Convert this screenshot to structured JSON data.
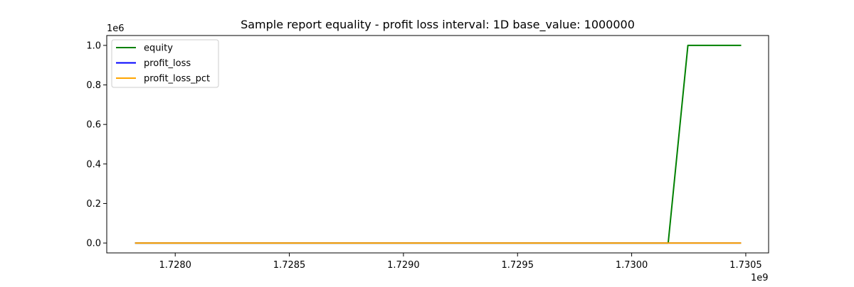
{
  "chart_data": {
    "type": "line",
    "title": "Sample report equality - profit loss interval: 1D base_value: 1000000",
    "xlabel": "",
    "ylabel": "",
    "x_offset_label": "1e9",
    "y_offset_label": "1e6",
    "xlim": [
      1727700000,
      1730600000
    ],
    "ylim": [
      -50000,
      1050000
    ],
    "x_ticks": [
      1728000000,
      1728500000,
      1729000000,
      1729500000,
      1730000000,
      1730500000
    ],
    "x_tick_labels": [
      "1.7280",
      "1.7285",
      "1.7290",
      "1.7295",
      "1.7300",
      "1.7305"
    ],
    "y_ticks": [
      0,
      200000,
      400000,
      600000,
      800000,
      1000000
    ],
    "y_tick_labels": [
      "0.0",
      "0.2",
      "0.4",
      "0.6",
      "0.8",
      "1.0"
    ],
    "grid": false,
    "legend_position": "top-left",
    "series": [
      {
        "name": "equity",
        "color": "#008000",
        "x": [
          1727827200,
          1730160000,
          1730246400,
          1730476800
        ],
        "y": [
          0,
          0,
          1000000,
          1000000
        ]
      },
      {
        "name": "profit_loss",
        "color": "#0000ff",
        "x": [
          1727827200,
          1730160000,
          1730246400,
          1730476800
        ],
        "y": [
          0,
          0,
          0,
          0
        ]
      },
      {
        "name": "profit_loss_pct",
        "color": "#ffa500",
        "x": [
          1727827200,
          1730160000,
          1730246400,
          1730476800
        ],
        "y": [
          0,
          0,
          0,
          0
        ]
      }
    ]
  }
}
